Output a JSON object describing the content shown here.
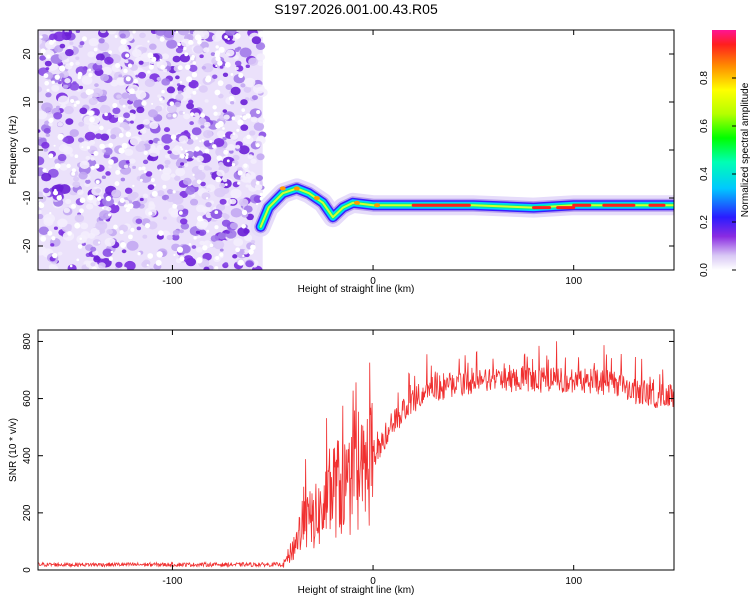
{
  "title": "S197.2026.001.00.43.R05",
  "chart_data": [
    {
      "type": "heatmap",
      "name": "spectrogram",
      "xlabel": "Height of straight line (km)",
      "ylabel": "Frequency (Hz)",
      "xlim": [
        -167,
        150
      ],
      "ylim": [
        -25,
        25
      ],
      "xticks": [
        -100,
        0,
        100
      ],
      "yticks": [
        -20,
        -10,
        0,
        10,
        20
      ],
      "noise_region_x": [
        -167,
        -55
      ],
      "signal_ridge": [
        {
          "x": -56,
          "y": -16
        },
        {
          "x": -52,
          "y": -12
        },
        {
          "x": -45,
          "y": -9
        },
        {
          "x": -38,
          "y": -8
        },
        {
          "x": -32,
          "y": -9
        },
        {
          "x": -25,
          "y": -11
        },
        {
          "x": -20,
          "y": -14
        },
        {
          "x": -15,
          "y": -12
        },
        {
          "x": -10,
          "y": -11
        },
        {
          "x": 0,
          "y": -11.5
        },
        {
          "x": 20,
          "y": -11.5
        },
        {
          "x": 50,
          "y": -11.5
        },
        {
          "x": 80,
          "y": -12
        },
        {
          "x": 100,
          "y": -11.5
        },
        {
          "x": 150,
          "y": -11.5
        }
      ],
      "colorbar": {
        "label": "Normalized spectral amplitude",
        "range": [
          0,
          1
        ],
        "ticks": [
          "0.0",
          "0.2",
          "0.4",
          "0.6",
          "0.8"
        ]
      }
    },
    {
      "type": "line",
      "name": "snr",
      "xlabel": "Height of straight line (km)",
      "ylabel": "SNR (10 * v/v)",
      "xlim": [
        -167,
        150
      ],
      "ylim": [
        0,
        840
      ],
      "xticks": [
        -100,
        0,
        100
      ],
      "yticks": [
        0,
        200,
        400,
        600,
        800
      ],
      "color": "#f03030",
      "envelope": [
        {
          "x": -167,
          "y": 15
        },
        {
          "x": -45,
          "y": 15
        },
        {
          "x": -40,
          "y": 80
        },
        {
          "x": -35,
          "y": 170
        },
        {
          "x": -25,
          "y": 220
        },
        {
          "x": -20,
          "y": 310
        },
        {
          "x": -10,
          "y": 320
        },
        {
          "x": -5,
          "y": 360
        },
        {
          "x": 0,
          "y": 440
        },
        {
          "x": 10,
          "y": 560
        },
        {
          "x": 20,
          "y": 640
        },
        {
          "x": 30,
          "y": 680
        },
        {
          "x": 50,
          "y": 700
        },
        {
          "x": 70,
          "y": 710
        },
        {
          "x": 100,
          "y": 710
        },
        {
          "x": 120,
          "y": 700
        },
        {
          "x": 135,
          "y": 660
        },
        {
          "x": 150,
          "y": 650
        }
      ]
    }
  ]
}
